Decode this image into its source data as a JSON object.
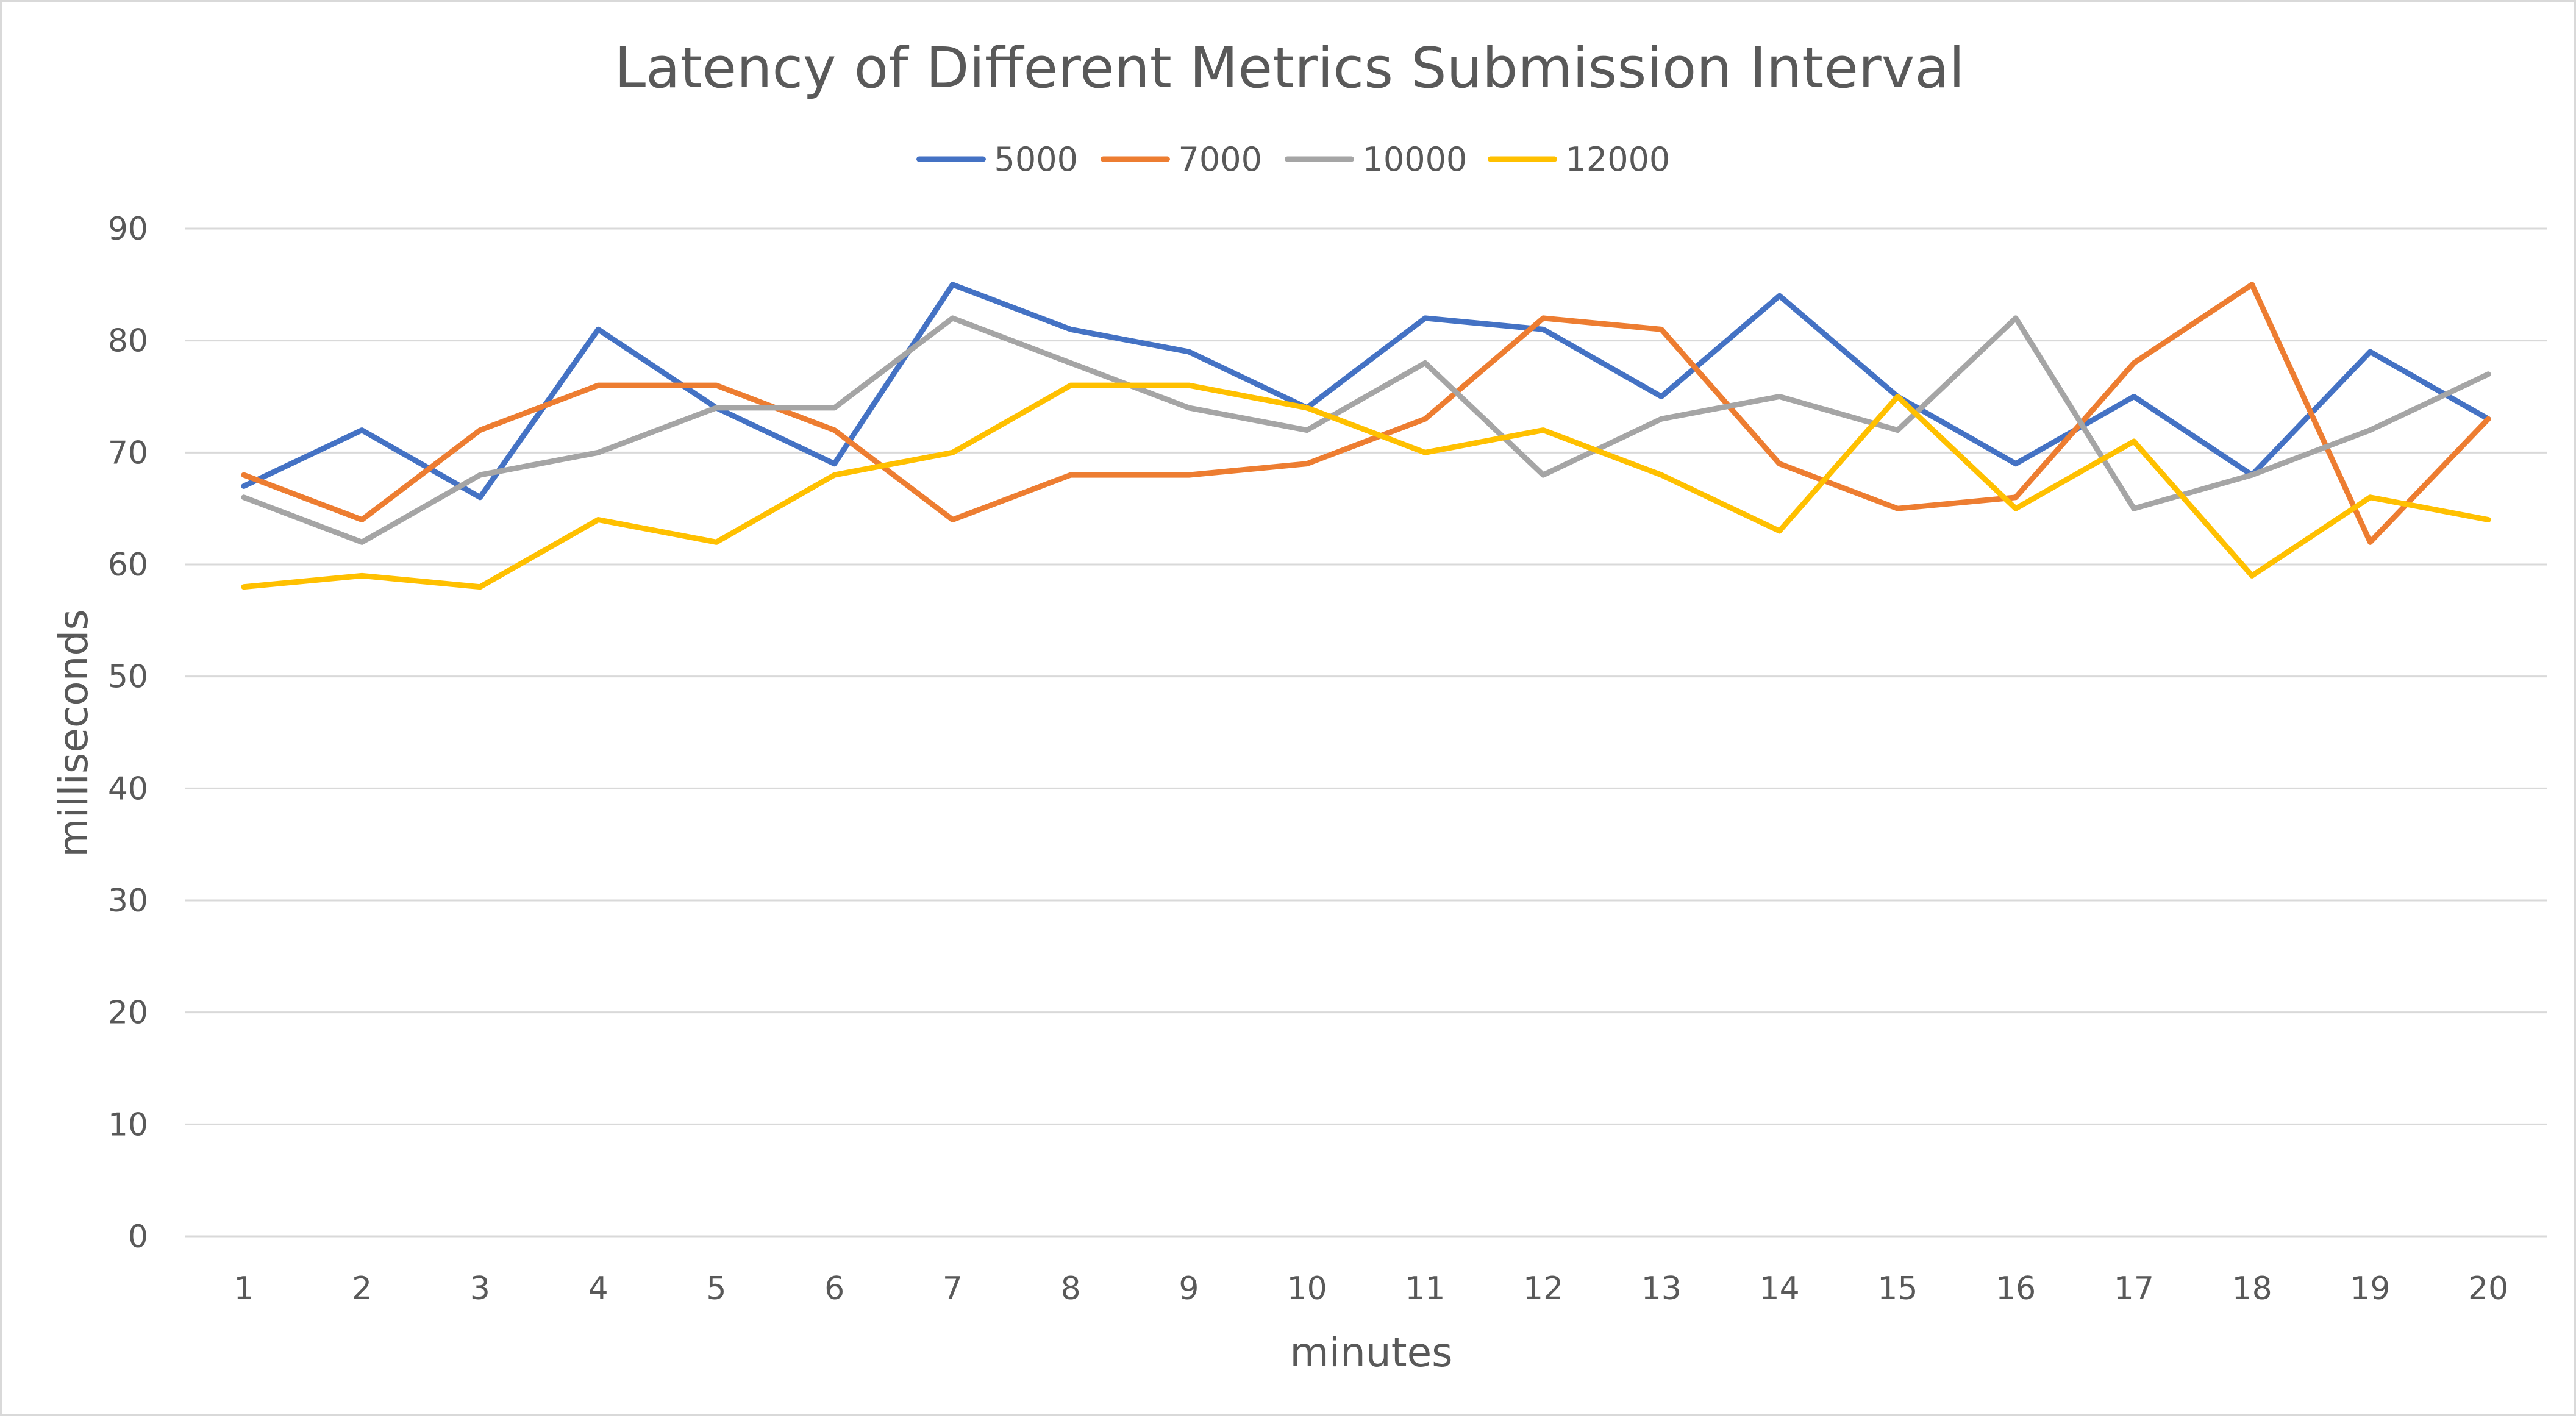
{
  "chart_data": {
    "type": "line",
    "title": "Latency of Different Metrics Submission Interval",
    "xlabel": "minutes",
    "ylabel": "milliseconds",
    "ylim": [
      0,
      90
    ],
    "yticks": [
      0,
      10,
      20,
      30,
      40,
      50,
      60,
      70,
      80,
      90
    ],
    "grid": true,
    "legend_position": "top",
    "categories": [
      "1",
      "2",
      "3",
      "4",
      "5",
      "6",
      "7",
      "8",
      "9",
      "10",
      "11",
      "12",
      "13",
      "14",
      "15",
      "16",
      "17",
      "18",
      "19",
      "20"
    ],
    "series": [
      {
        "name": "5000",
        "color": "#4472c4",
        "values": [
          67,
          72,
          66,
          81,
          74,
          69,
          85,
          81,
          79,
          74,
          82,
          81,
          75,
          84,
          75,
          69,
          75,
          68,
          79,
          73
        ]
      },
      {
        "name": "7000",
        "color": "#ed7d31",
        "values": [
          68,
          64,
          72,
          76,
          76,
          72,
          64,
          68,
          68,
          69,
          73,
          82,
          81,
          69,
          65,
          66,
          78,
          85,
          62,
          73
        ]
      },
      {
        "name": "10000",
        "color": "#a5a5a5",
        "values": [
          66,
          62,
          68,
          70,
          74,
          74,
          82,
          78,
          74,
          72,
          78,
          68,
          73,
          75,
          72,
          82,
          65,
          68,
          72,
          77
        ]
      },
      {
        "name": "12000",
        "color": "#ffc000",
        "values": [
          58,
          59,
          58,
          64,
          62,
          68,
          70,
          76,
          76,
          74,
          70,
          72,
          68,
          63,
          75,
          65,
          71,
          59,
          66,
          64
        ]
      }
    ],
    "gridline_color": "#d9d9d9",
    "text_color": "#595959"
  }
}
